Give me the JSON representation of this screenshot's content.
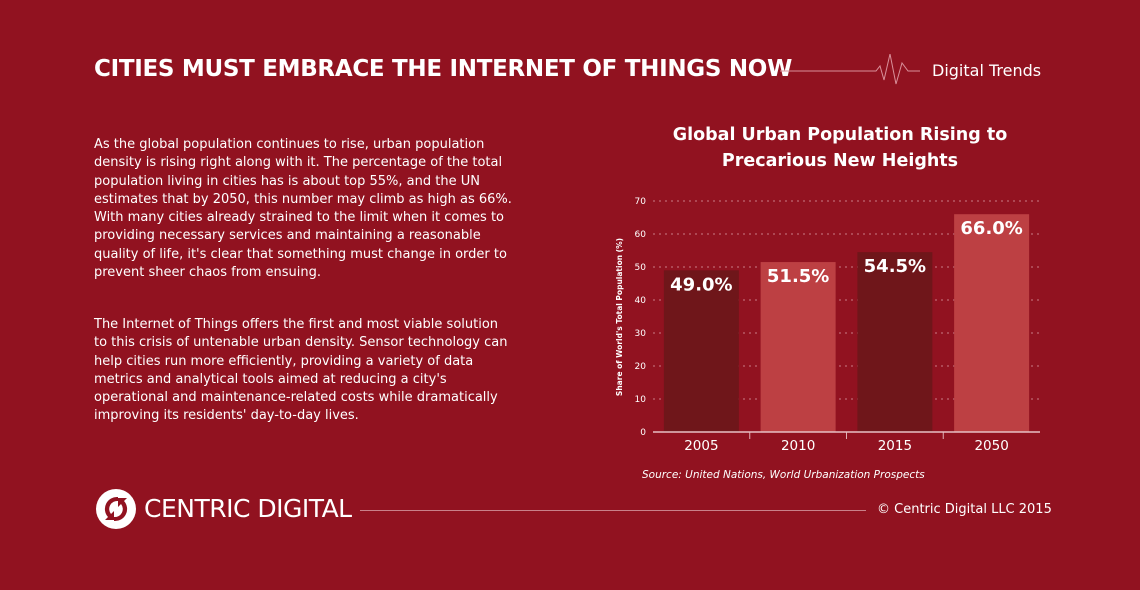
{
  "header": {
    "title": "CITIES MUST EMBRACE THE INTERNET OF THINGS NOW",
    "brand": "Digital Trends"
  },
  "body": {
    "paragraphs": [
      "As the global population continues to rise, urban population density is rising right along with it. The percentage of the total population living in cities has is about top 55%, and  the UN estimates that by 2050, this number may climb as high as 66%. With many cities already strained to the limit when it comes to providing necessary services and maintaining a reasonable quality of life, it's clear that something must change in order to prevent sheer chaos from ensuing.",
      "The Internet of Things offers the first and most viable solution to this crisis of untenable urban density. Sensor technology can help cities run more efficiently, providing a variety of data metrics and analytical tools aimed at reducing a city's operational and maintenance-related costs while dramatically improving its residents' day-to-day lives."
    ]
  },
  "chart_data": {
    "type": "bar",
    "title": "Global Urban Population Rising to Precarious New Heights",
    "ylabel": "Share of World's Total Population (%)",
    "xlabel": "",
    "categories": [
      "2005",
      "2010",
      "2015",
      "2050"
    ],
    "values": [
      49.0,
      51.5,
      54.5,
      66.0
    ],
    "data_labels": [
      "49.0%",
      "51.5%",
      "54.5%",
      "66.0%"
    ],
    "ylim": [
      0,
      70
    ],
    "yticks": [
      "0",
      "10",
      "20",
      "30",
      "40",
      "50",
      "60",
      "70"
    ],
    "grid": true,
    "bar_colors": [
      "#6f161a",
      "#bd4043",
      "#6f161a",
      "#bd4043"
    ],
    "source": "Source: United Nations, World Urbanization Prospects"
  },
  "footer": {
    "logo_text": "CENTRIC DIGITAL",
    "copyright": "© Centric Digital LLC 2015"
  },
  "colors": {
    "background": "#911220",
    "text": "#ffffff"
  }
}
